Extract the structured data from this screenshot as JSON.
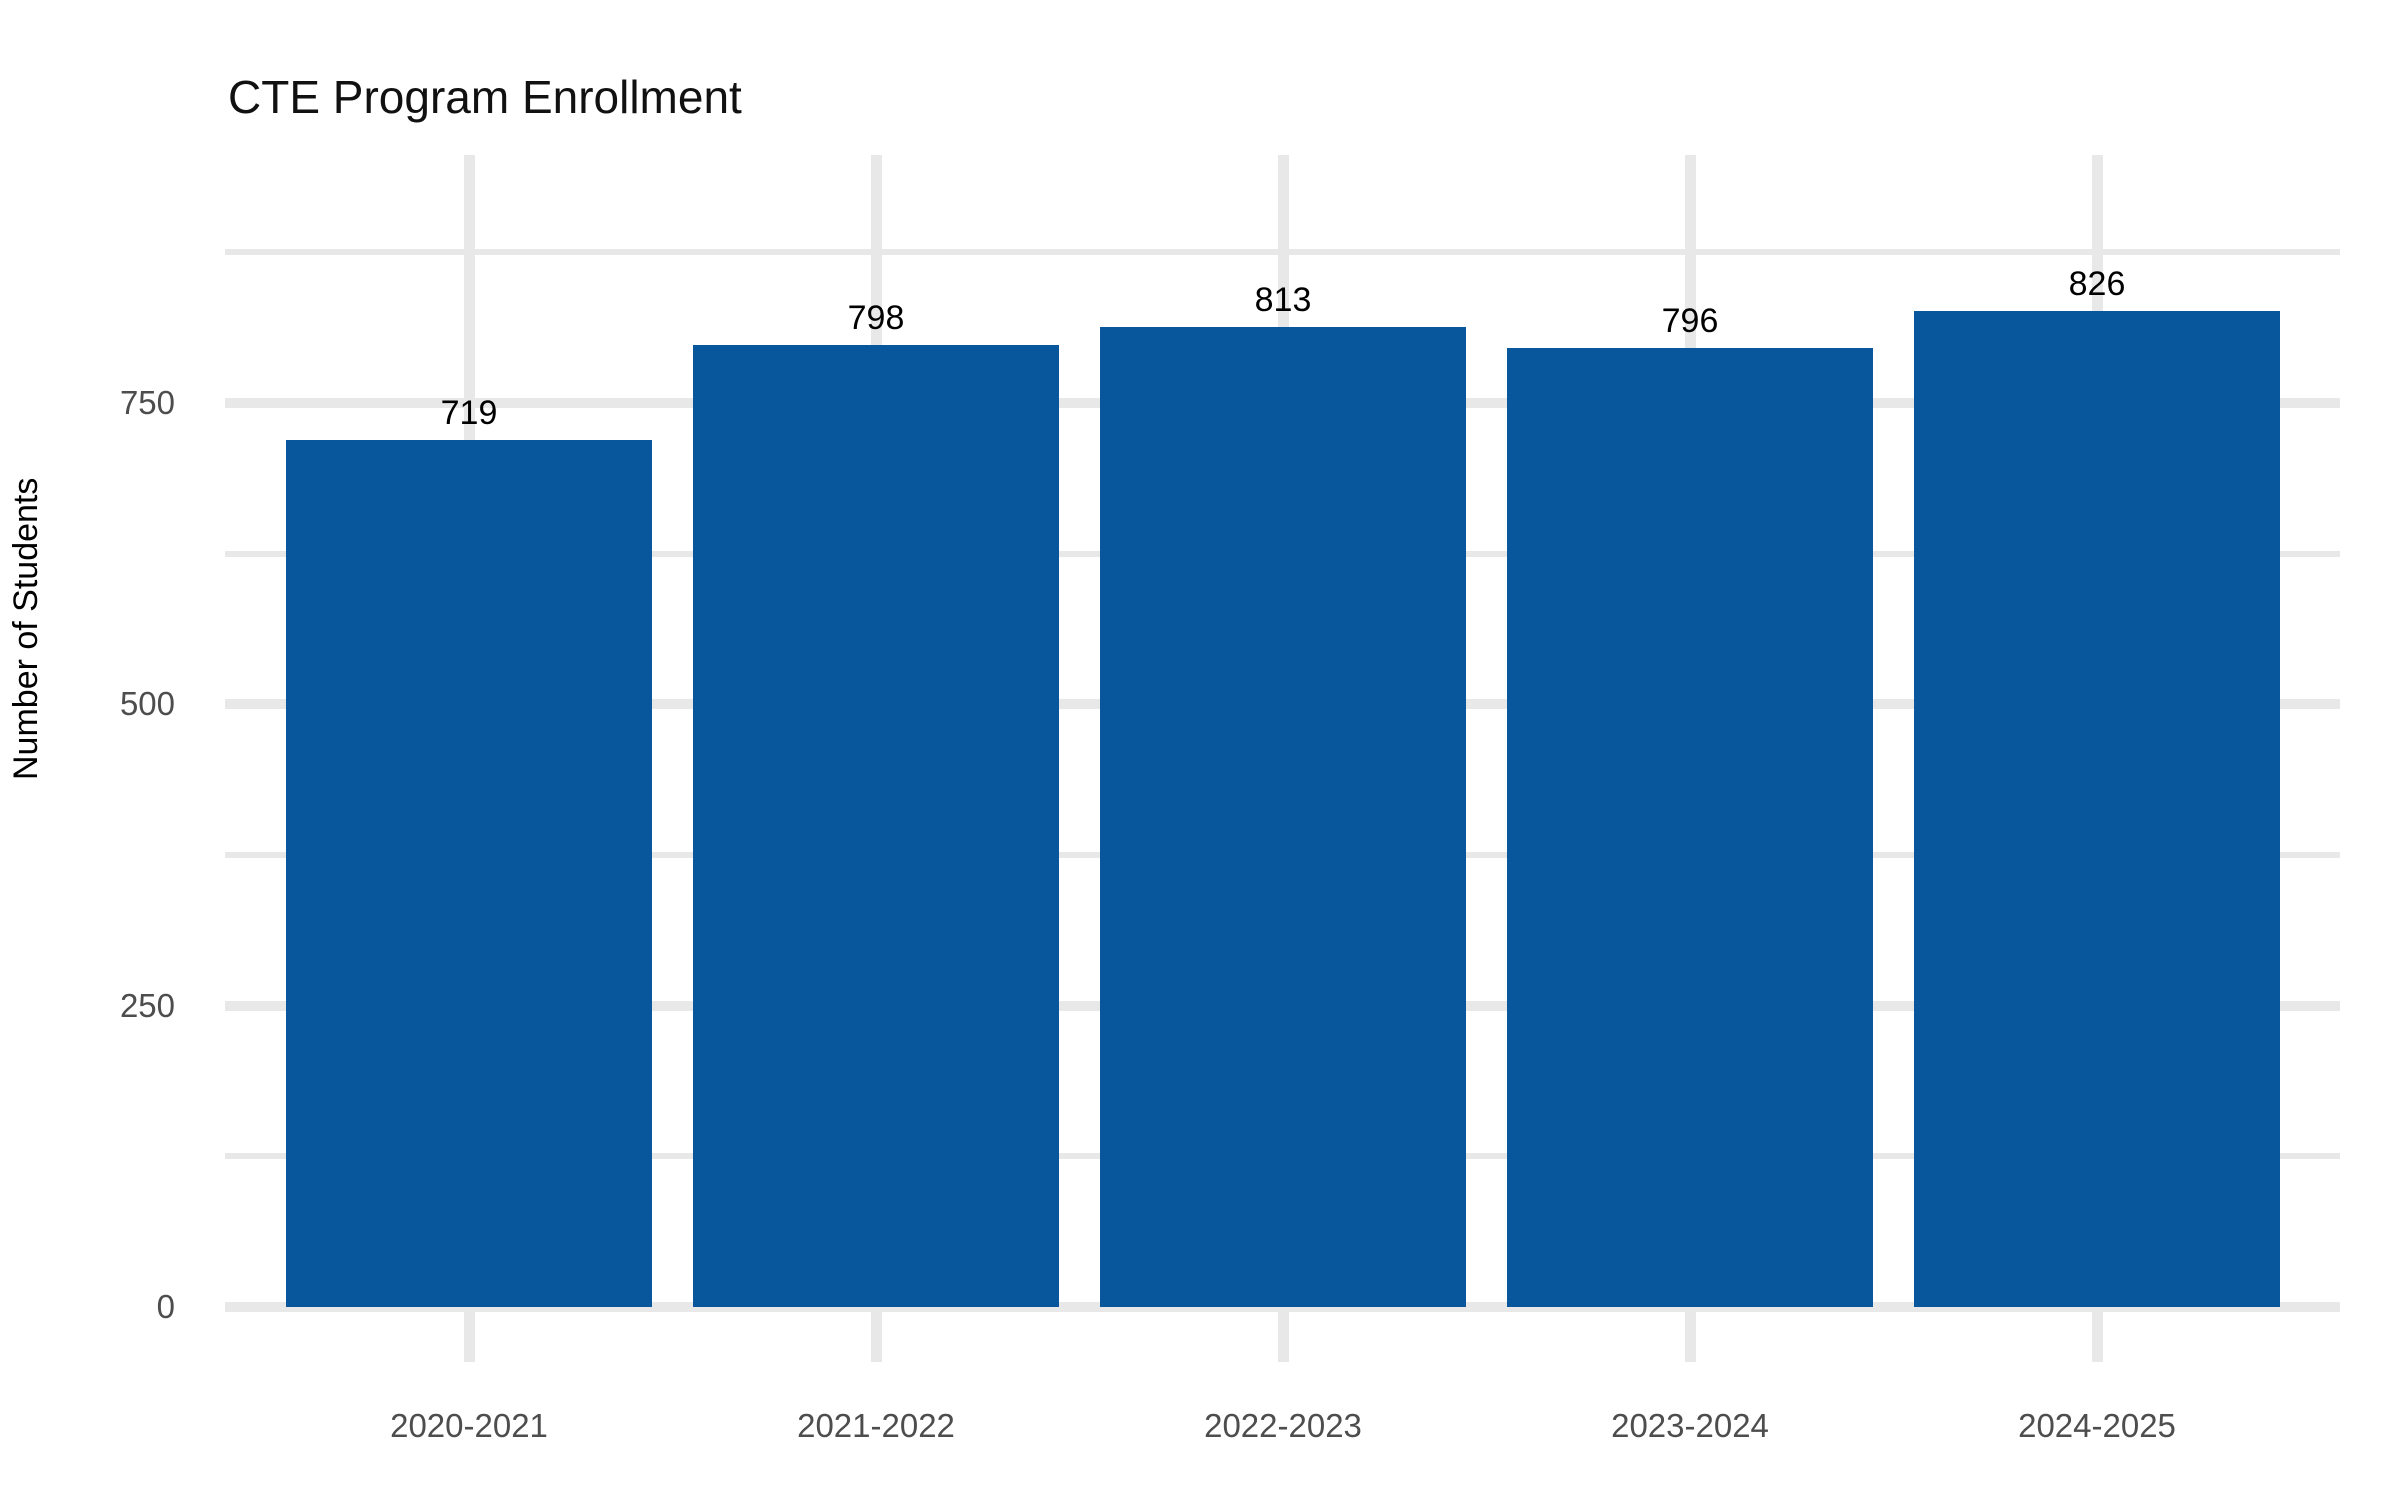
{
  "chart_data": {
    "type": "bar",
    "title": "CTE Program Enrollment",
    "xlabel": "",
    "ylabel": "Number of Students",
    "categories": [
      "2020-2021",
      "2021-2022",
      "2022-2023",
      "2023-2024",
      "2024-2025"
    ],
    "values": [
      719,
      798,
      813,
      796,
      826
    ],
    "bar_value_labels": [
      "719",
      "798",
      "813",
      "796",
      "826"
    ],
    "yticks": [
      0,
      250,
      500,
      750
    ],
    "yticks_minor": [
      125,
      375,
      625,
      875
    ],
    "ylim": [
      0,
      950
    ],
    "grid": true,
    "legend": false,
    "colors": {
      "bar": "#08569B",
      "gridline": "#e8e8e8",
      "tick_text": "#4d4d4d",
      "title_text": "#111111",
      "value_label_text": "#000000",
      "background": "#ffffff"
    }
  }
}
